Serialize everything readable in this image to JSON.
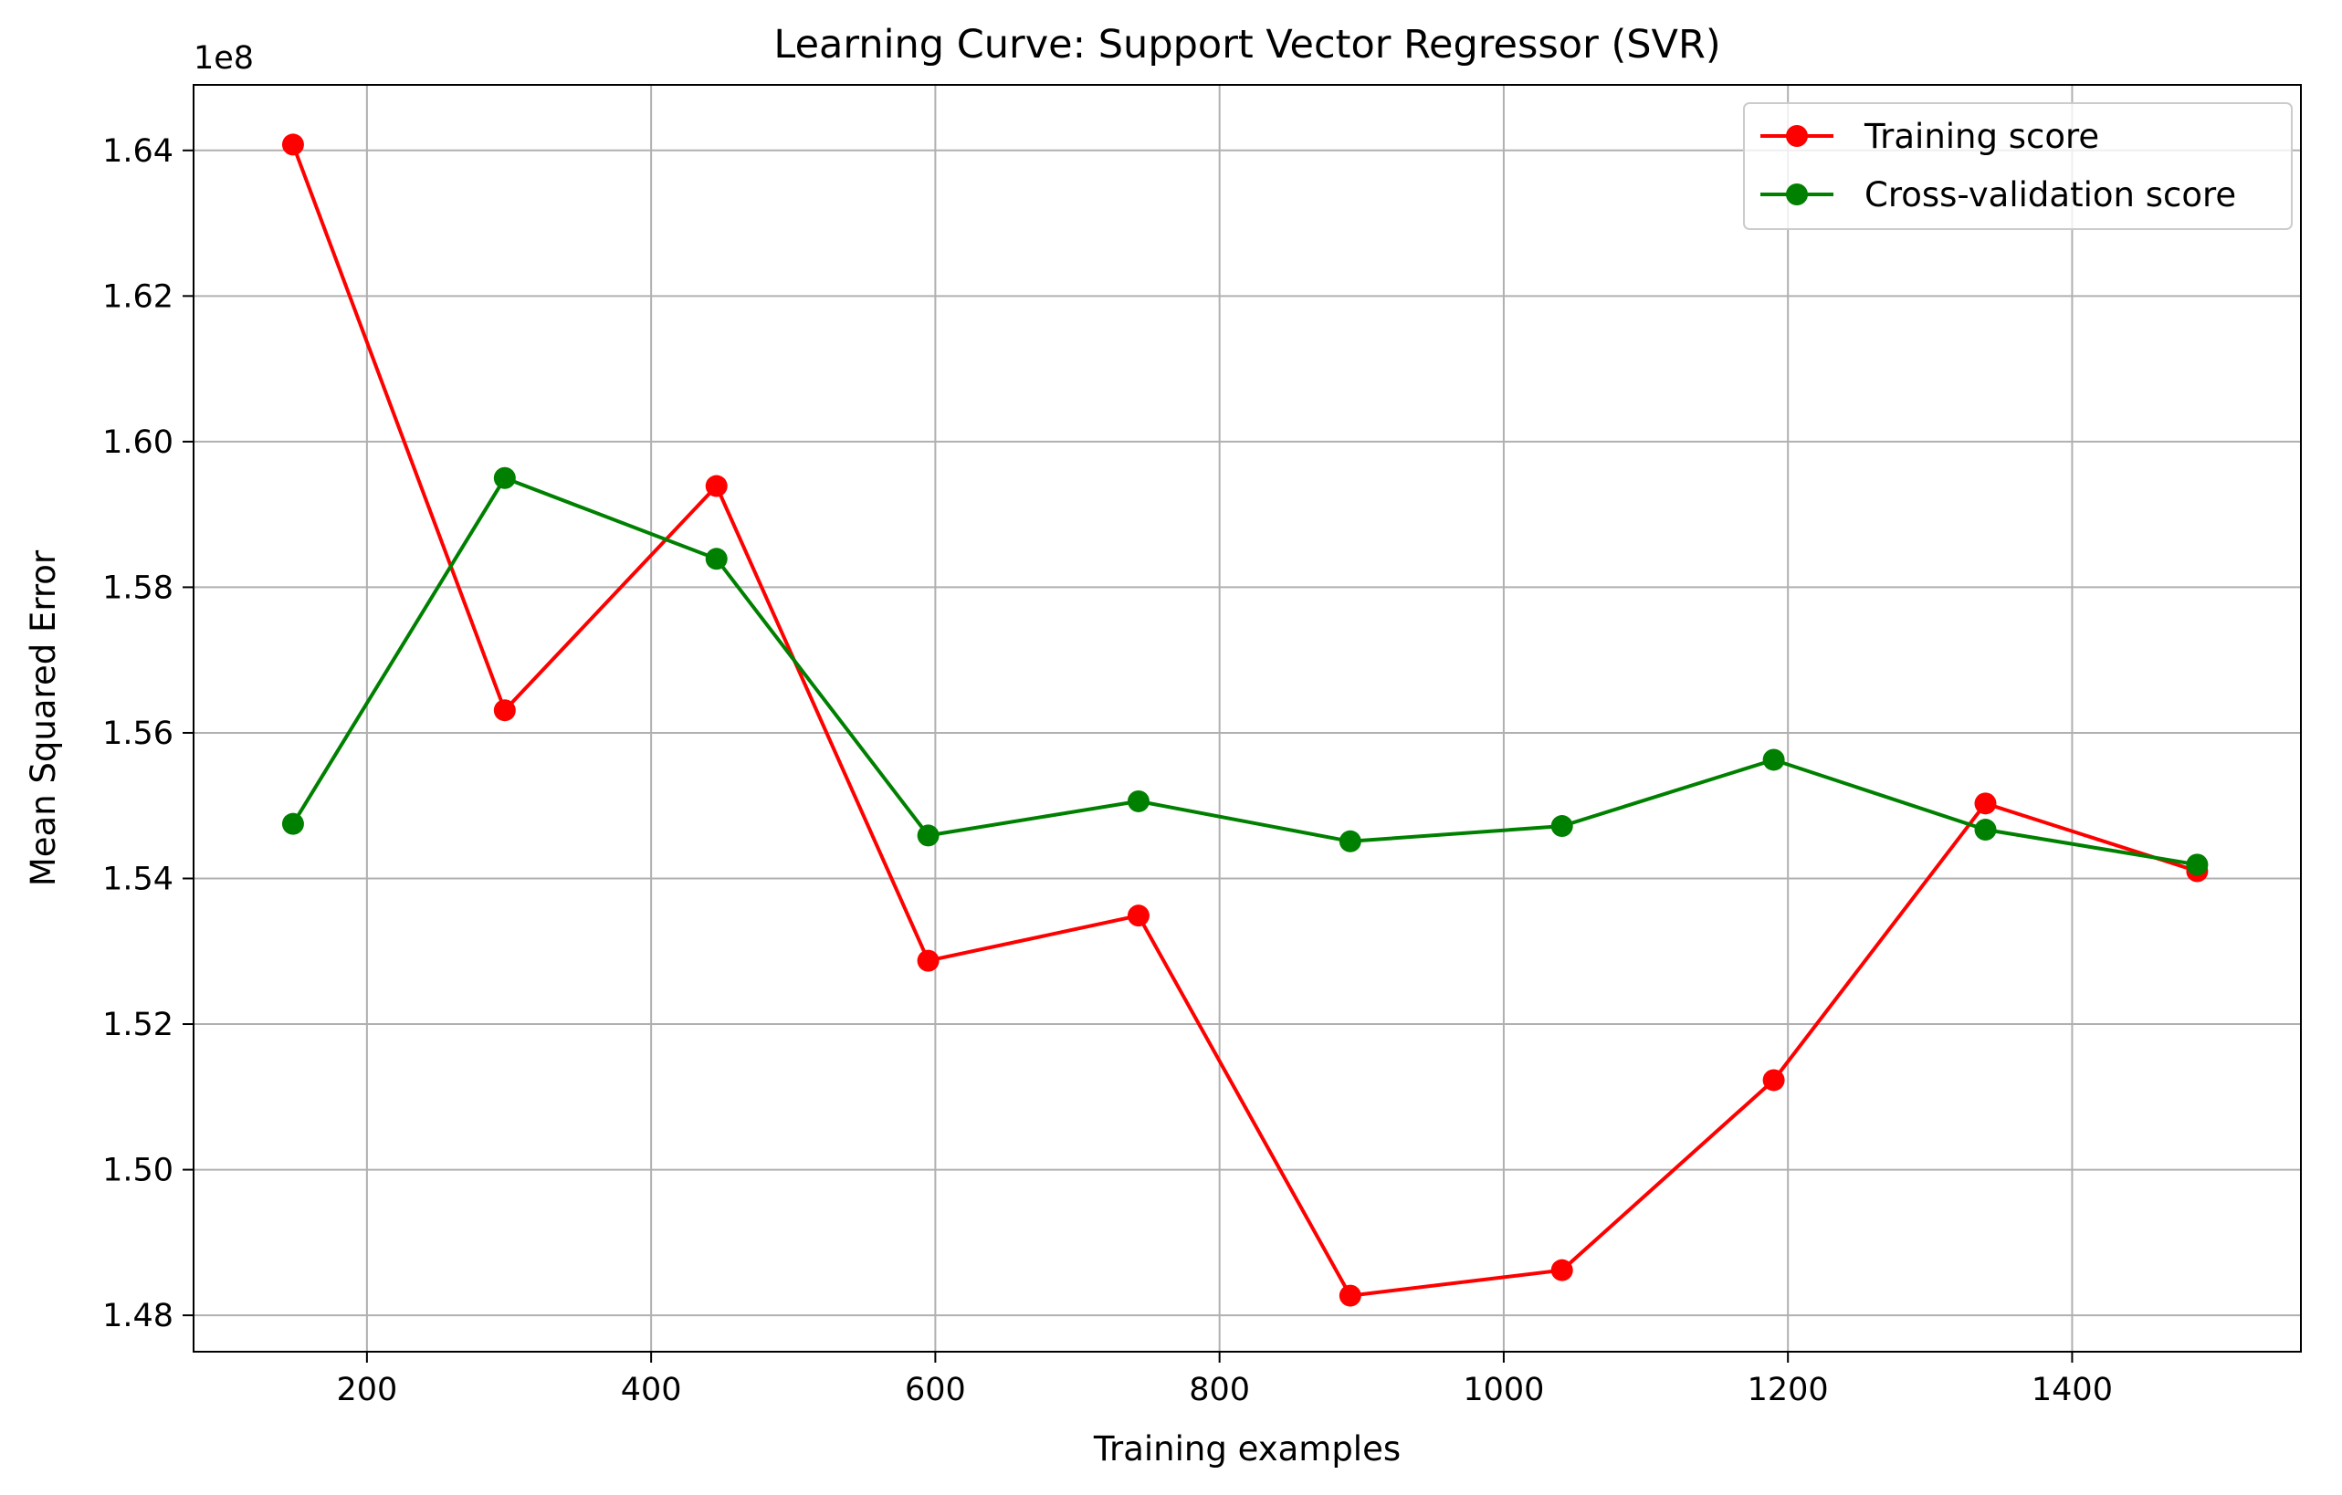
{
  "chart_data": {
    "type": "line",
    "title": "Learning Curve: Support Vector Regressor (SVR)",
    "xlabel": "Training examples",
    "ylabel": "Mean Squared Error",
    "y_offset_label": "1e8",
    "xlim": [
      78,
      1561
    ],
    "ylim": [
      1.475,
      1.649
    ],
    "grid": true,
    "legend": "upper-right",
    "x_ticks": [
      200,
      400,
      600,
      800,
      1000,
      1200,
      1400
    ],
    "x_tick_labels": [
      "200",
      "400",
      "600",
      "800",
      "1000",
      "1200",
      "1400"
    ],
    "y_ticks": [
      1.48,
      1.5,
      1.52,
      1.54,
      1.56,
      1.58,
      1.6,
      1.62,
      1.64
    ],
    "y_tick_labels": [
      "1.48",
      "1.50",
      "1.52",
      "1.54",
      "1.56",
      "1.58",
      "1.60",
      "1.62",
      "1.64"
    ],
    "x": [
      148,
      297,
      446,
      595,
      743,
      892,
      1041,
      1190,
      1339,
      1488
    ],
    "series": [
      {
        "name": "Training score",
        "color": "#ff0000",
        "values": [
          1.6408,
          1.5631,
          1.5939,
          1.5287,
          1.5349,
          1.4827,
          1.4862,
          1.5123,
          1.5503,
          1.541
        ]
      },
      {
        "name": "Cross-validation score",
        "color": "#008000",
        "values": [
          1.5475,
          1.595,
          1.5839,
          1.5459,
          1.5506,
          1.5451,
          1.5472,
          1.5563,
          1.5467,
          1.5419
        ]
      }
    ]
  }
}
